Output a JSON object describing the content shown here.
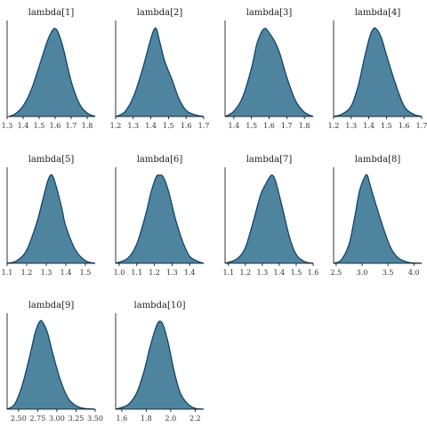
{
  "chart_data": {
    "type": "area",
    "title": "",
    "xlabel": "",
    "ylabel": "",
    "grid": false,
    "legend": "none",
    "colors": {
      "fill": "#4f849f",
      "stroke": "#11456e"
    },
    "panels": [
      {
        "title": "lambda[1]",
        "xlim": [
          1.3,
          1.85
        ],
        "ticks": [
          1.3,
          1.4,
          1.5,
          1.6,
          1.7,
          1.8
        ],
        "tick_labels": [
          "1.3",
          "1.4",
          "1.5",
          "1.6",
          "1.7",
          "1.8"
        ],
        "x": [
          1.31,
          1.35,
          1.4,
          1.45,
          1.5,
          1.55,
          1.58,
          1.6,
          1.62,
          1.65,
          1.7,
          1.75,
          1.8,
          1.85
        ],
        "y": [
          0.0,
          0.03,
          0.12,
          0.3,
          0.57,
          0.85,
          0.97,
          1.0,
          0.95,
          0.78,
          0.4,
          0.15,
          0.04,
          0.0
        ]
      },
      {
        "title": "lambda[2]",
        "xlim": [
          1.2,
          1.7
        ],
        "ticks": [
          1.2,
          1.3,
          1.4,
          1.5,
          1.6,
          1.7
        ],
        "tick_labels": [
          "1.2",
          "1.3",
          "1.4",
          "1.5",
          "1.6",
          "1.7"
        ],
        "x": [
          1.2,
          1.25,
          1.3,
          1.35,
          1.38,
          1.41,
          1.43,
          1.45,
          1.48,
          1.52,
          1.56,
          1.6,
          1.65,
          1.7
        ],
        "y": [
          0.0,
          0.05,
          0.22,
          0.52,
          0.74,
          0.95,
          1.0,
          0.85,
          0.62,
          0.42,
          0.2,
          0.07,
          0.02,
          0.0
        ]
      },
      {
        "title": "lambda[3]",
        "xlim": [
          1.35,
          1.85
        ],
        "ticks": [
          1.4,
          1.5,
          1.6,
          1.7,
          1.8
        ],
        "tick_labels": [
          "1.4",
          "1.5",
          "1.6",
          "1.7",
          "1.8"
        ],
        "x": [
          1.35,
          1.4,
          1.45,
          1.5,
          1.53,
          1.56,
          1.58,
          1.6,
          1.63,
          1.66,
          1.7,
          1.75,
          1.8,
          1.85
        ],
        "y": [
          0.0,
          0.06,
          0.22,
          0.55,
          0.82,
          0.97,
          1.0,
          0.95,
          0.86,
          0.72,
          0.45,
          0.18,
          0.05,
          0.0
        ]
      },
      {
        "title": "lambda[4]",
        "xlim": [
          1.2,
          1.7
        ],
        "ticks": [
          1.2,
          1.3,
          1.4,
          1.5,
          1.6,
          1.7
        ],
        "tick_labels": [
          "1.2",
          "1.3",
          "1.4",
          "1.5",
          "1.6",
          "1.7"
        ],
        "x": [
          1.2,
          1.25,
          1.3,
          1.34,
          1.37,
          1.4,
          1.42,
          1.44,
          1.47,
          1.5,
          1.55,
          1.6,
          1.65,
          1.7
        ],
        "y": [
          0.0,
          0.03,
          0.12,
          0.35,
          0.62,
          0.87,
          0.98,
          1.0,
          0.9,
          0.7,
          0.38,
          0.12,
          0.03,
          0.0
        ]
      },
      {
        "title": "lambda[5]",
        "xlim": [
          1.1,
          1.55
        ],
        "ticks": [
          1.1,
          1.2,
          1.3,
          1.4,
          1.5
        ],
        "tick_labels": [
          "1.1",
          "1.2",
          "1.3",
          "1.4",
          "1.5"
        ],
        "x": [
          1.1,
          1.15,
          1.2,
          1.25,
          1.28,
          1.31,
          1.33,
          1.35,
          1.38,
          1.4,
          1.45,
          1.5,
          1.55
        ],
        "y": [
          0.0,
          0.03,
          0.15,
          0.45,
          0.7,
          0.95,
          1.0,
          0.88,
          0.62,
          0.42,
          0.15,
          0.03,
          0.0
        ]
      },
      {
        "title": "lambda[6]",
        "xlim": [
          0.98,
          1.48
        ],
        "ticks": [
          1.0,
          1.1,
          1.2,
          1.3,
          1.4
        ],
        "tick_labels": [
          "1.0",
          "1.1",
          "1.2",
          "1.3",
          "1.4"
        ],
        "x": [
          0.98,
          1.05,
          1.1,
          1.15,
          1.18,
          1.21,
          1.23,
          1.25,
          1.28,
          1.32,
          1.36,
          1.4,
          1.45,
          1.48
        ],
        "y": [
          0.0,
          0.06,
          0.22,
          0.55,
          0.8,
          0.98,
          1.0,
          0.98,
          0.82,
          0.5,
          0.25,
          0.08,
          0.02,
          0.0
        ]
      },
      {
        "title": "lambda[7]",
        "xlim": [
          1.08,
          1.6
        ],
        "ticks": [
          1.1,
          1.2,
          1.3,
          1.4,
          1.5,
          1.6
        ],
        "tick_labels": [
          "1.1",
          "1.2",
          "1.3",
          "1.4",
          "1.5",
          "1.6"
        ],
        "x": [
          1.08,
          1.15,
          1.2,
          1.25,
          1.29,
          1.32,
          1.34,
          1.36,
          1.38,
          1.42,
          1.46,
          1.5,
          1.55,
          1.6
        ],
        "y": [
          0.0,
          0.05,
          0.18,
          0.5,
          0.78,
          0.9,
          0.97,
          1.0,
          0.92,
          0.62,
          0.3,
          0.1,
          0.02,
          0.0
        ]
      },
      {
        "title": "lambda[8]",
        "xlim": [
          2.45,
          4.15
        ],
        "ticks": [
          2.5,
          3.0,
          3.5,
          4.0
        ],
        "tick_labels": [
          "2.5",
          "3.0",
          "3.5",
          "4.0"
        ],
        "x": [
          2.45,
          2.6,
          2.75,
          2.85,
          2.95,
          3.05,
          3.1,
          3.15,
          3.25,
          3.4,
          3.55,
          3.7,
          3.9,
          4.15
        ],
        "y": [
          0.0,
          0.04,
          0.22,
          0.5,
          0.82,
          0.98,
          1.0,
          0.9,
          0.7,
          0.42,
          0.18,
          0.06,
          0.01,
          0.0
        ]
      },
      {
        "title": "lambda[9]",
        "xlim": [
          2.35,
          3.5
        ],
        "ticks": [
          2.5,
          2.75,
          3.0,
          3.25,
          3.5
        ],
        "tick_labels": [
          "2.50",
          "2.75",
          "3.00",
          "3.25",
          "3.50"
        ],
        "x": [
          2.35,
          2.45,
          2.55,
          2.65,
          2.72,
          2.78,
          2.82,
          2.88,
          2.95,
          3.05,
          3.15,
          3.25,
          3.35,
          3.5
        ],
        "y": [
          0.0,
          0.06,
          0.28,
          0.62,
          0.88,
          1.0,
          0.98,
          0.86,
          0.62,
          0.32,
          0.12,
          0.04,
          0.01,
          0.0
        ]
      },
      {
        "title": "lambda[10]",
        "xlim": [
          1.55,
          2.27
        ],
        "ticks": [
          1.6,
          1.8,
          2.0,
          2.2
        ],
        "tick_labels": [
          "1.6",
          "1.8",
          "2.0",
          "2.2"
        ],
        "x": [
          1.55,
          1.65,
          1.72,
          1.78,
          1.83,
          1.88,
          1.91,
          1.94,
          1.98,
          2.03,
          2.08,
          2.14,
          2.2,
          2.27
        ],
        "y": [
          0.0,
          0.05,
          0.18,
          0.42,
          0.7,
          0.93,
          1.0,
          0.95,
          0.75,
          0.42,
          0.18,
          0.06,
          0.01,
          0.0
        ]
      }
    ]
  }
}
